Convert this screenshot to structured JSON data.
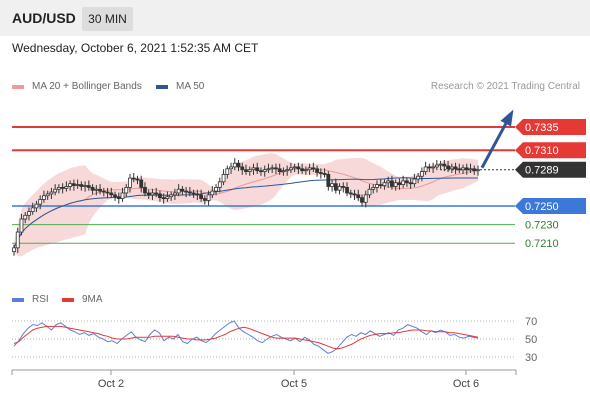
{
  "header": {
    "pair": "AUD/USD",
    "timeframe": "30 MIN",
    "datetime": "Wednesday, October 6, 2021 1:52:35 AM CET"
  },
  "legend": {
    "bollinger_label": "MA 20 + Bollinger Bands",
    "ma50_label": "MA 50",
    "credit": "Research © 2021 Trading Central"
  },
  "rsi_legend": {
    "rsi_label": "RSI",
    "ma9_label": "9MA"
  },
  "colors": {
    "candle": "#333333",
    "bollinger": "#f4cccc",
    "ma20": "#e59a9a",
    "ma50": "#2f5597",
    "resistance": "#e53935",
    "support": "#3b78d8",
    "lower_support": "#4caf50",
    "current": "#333333",
    "rsi": "#5b7fd8",
    "rsi_ma": "#e53935"
  },
  "chart_data": [
    {
      "type": "candlestick",
      "x_ticks": [
        "Oct 2",
        "Oct 5",
        "Oct 6"
      ],
      "ylim": [
        0.7195,
        0.7345
      ],
      "levels": [
        {
          "label": "0.7335",
          "value": 0.7335,
          "kind": "resistance"
        },
        {
          "label": "0.7310",
          "value": 0.731,
          "kind": "resistance"
        },
        {
          "label": "0.7289",
          "value": 0.7289,
          "kind": "current"
        },
        {
          "label": "0.7250",
          "value": 0.725,
          "kind": "support"
        },
        {
          "label": "0.7230",
          "value": 0.723,
          "kind": "lower_support"
        },
        {
          "label": "0.7210",
          "value": 0.721,
          "kind": "lower_support"
        }
      ],
      "close": [
        0.7205,
        0.7222,
        0.7236,
        0.724,
        0.7244,
        0.7248,
        0.7252,
        0.7257,
        0.7261,
        0.7263,
        0.7265,
        0.7268,
        0.727,
        0.7269,
        0.7271,
        0.7274,
        0.7272,
        0.7273,
        0.7271,
        0.7272,
        0.727,
        0.7267,
        0.7268,
        0.7266,
        0.7265,
        0.7264,
        0.7262,
        0.726,
        0.7258,
        0.7264,
        0.727,
        0.728,
        0.7279,
        0.7278,
        0.727,
        0.7264,
        0.7262,
        0.7264,
        0.7263,
        0.7259,
        0.7258,
        0.726,
        0.7262,
        0.7264,
        0.7268,
        0.7266,
        0.7265,
        0.7264,
        0.7263,
        0.7262,
        0.7258,
        0.7256,
        0.7262,
        0.7266,
        0.727,
        0.7276,
        0.7284,
        0.729,
        0.7292,
        0.7296,
        0.7292,
        0.7289,
        0.7287,
        0.7289,
        0.7291,
        0.7288,
        0.7287,
        0.7289,
        0.729,
        0.7291,
        0.729,
        0.7287,
        0.7288,
        0.7289,
        0.7291,
        0.7292,
        0.729,
        0.7288,
        0.7289,
        0.7291,
        0.729,
        0.7286,
        0.7285,
        0.7284,
        0.7271,
        0.7274,
        0.7267,
        0.7271,
        0.727,
        0.7264,
        0.7263,
        0.7262,
        0.7259,
        0.7254,
        0.7262,
        0.7268,
        0.727,
        0.7273,
        0.7272,
        0.7275,
        0.7277,
        0.7271,
        0.7275,
        0.7273,
        0.7277,
        0.7275,
        0.7274,
        0.7279,
        0.7282,
        0.7287,
        0.7292,
        0.7291,
        0.7292,
        0.7294,
        0.7295,
        0.7293,
        0.729,
        0.7292,
        0.729,
        0.7289,
        0.7291,
        0.7289,
        0.729,
        0.7288,
        0.7289
      ],
      "rsi": {
        "levels": [
          70,
          50,
          30
        ],
        "rsi": [
          42,
          48,
          56,
          62,
          66,
          65,
          68,
          64,
          60,
          66,
          68,
          64,
          60,
          58,
          55,
          57,
          54,
          56,
          52,
          50,
          47,
          48,
          45,
          50,
          54,
          58,
          52,
          49,
          47,
          55,
          60,
          57,
          48,
          52,
          50,
          55,
          47,
          45,
          50,
          52,
          48,
          46,
          50,
          56,
          60,
          64,
          68,
          70,
          62,
          58,
          55,
          52,
          48,
          46,
          50,
          53,
          55,
          52,
          50,
          48,
          51,
          47,
          52,
          49,
          44,
          42,
          38,
          34,
          36,
          40,
          46,
          52,
          55,
          53,
          57,
          55,
          59,
          56,
          53,
          55,
          57,
          54,
          60,
          62,
          66,
          64,
          62,
          58,
          55,
          59,
          57,
          60,
          58,
          54,
          55,
          52,
          51,
          53,
          52,
          51
        ],
        "ma": [
          45,
          47,
          52,
          56,
          60,
          62,
          63,
          64,
          64,
          64,
          64,
          63,
          62,
          61,
          60,
          59,
          58,
          57,
          56,
          54,
          53,
          51,
          50,
          50,
          50,
          51,
          52,
          52,
          52,
          52,
          53,
          53,
          53,
          53,
          53,
          52,
          51,
          50,
          50,
          49,
          49,
          49,
          50,
          51,
          53,
          55,
          58,
          60,
          62,
          63,
          62,
          60,
          58,
          56,
          54,
          52,
          51,
          51,
          51,
          51,
          51,
          50,
          49,
          48,
          47,
          46,
          44,
          42,
          40,
          39,
          40,
          42,
          44,
          47,
          50,
          52,
          54,
          55,
          56,
          56,
          56,
          57,
          57,
          58,
          59,
          60,
          60,
          60,
          59,
          59,
          58,
          58,
          58,
          57,
          57,
          56,
          55,
          54,
          53,
          52
        ]
      }
    }
  ]
}
